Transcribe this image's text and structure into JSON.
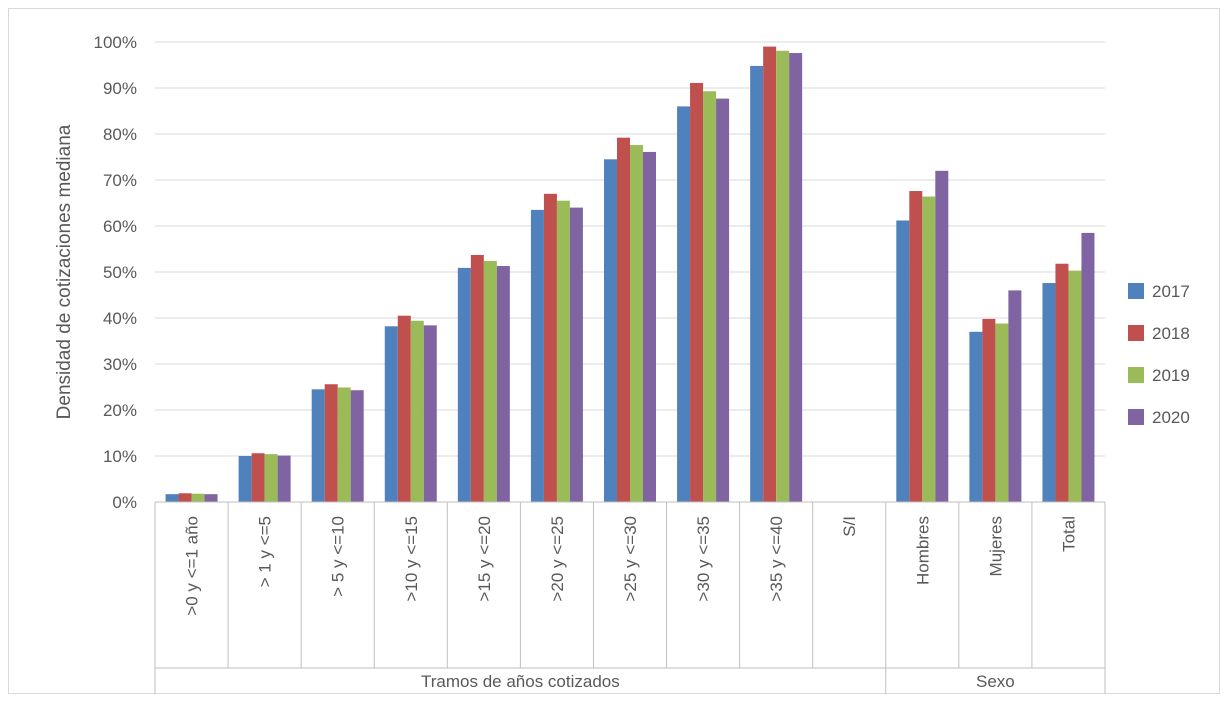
{
  "chart_data": {
    "type": "bar",
    "ylabel": "Densidad de cotizaciones mediana",
    "ylim": [
      0,
      1
    ],
    "y_ticks": [
      "0%",
      "10%",
      "20%",
      "30%",
      "40%",
      "50%",
      "60%",
      "70%",
      "80%",
      "90%",
      "100%"
    ],
    "grid": true,
    "legend_position": "right",
    "categories": [
      ">0 y <=1 año",
      "> 1 y <=5",
      "> 5 y <=10",
      ">10 y <=15",
      ">15 y <=20",
      ">20 y <=25",
      ">25 y <=30",
      ">30 y <=35",
      ">35 y <=40",
      "S/I",
      "Hombres",
      "Mujeres",
      "Total"
    ],
    "groups": [
      {
        "label": "Tramos de años cotizados",
        "count": 10
      },
      {
        "label": "Sexo",
        "count": 3
      }
    ],
    "series": [
      {
        "name": "2017",
        "color": "#4f81bd",
        "values": [
          0.017,
          0.1,
          0.245,
          0.382,
          0.509,
          0.635,
          0.745,
          0.86,
          0.948,
          null,
          0.612,
          0.37,
          0.476
        ]
      },
      {
        "name": "2018",
        "color": "#c0504d",
        "values": [
          0.019,
          0.106,
          0.256,
          0.405,
          0.537,
          0.67,
          0.792,
          0.911,
          0.99,
          null,
          0.676,
          0.398,
          0.518
        ]
      },
      {
        "name": "2019",
        "color": "#9bbb59",
        "values": [
          0.018,
          0.104,
          0.249,
          0.394,
          0.524,
          0.655,
          0.776,
          0.893,
          0.981,
          null,
          0.664,
          0.388,
          0.503
        ]
      },
      {
        "name": "2020",
        "color": "#8064a2",
        "values": [
          0.017,
          0.101,
          0.243,
          0.384,
          0.513,
          0.64,
          0.761,
          0.877,
          0.976,
          null,
          0.72,
          0.46,
          0.585
        ]
      }
    ]
  }
}
